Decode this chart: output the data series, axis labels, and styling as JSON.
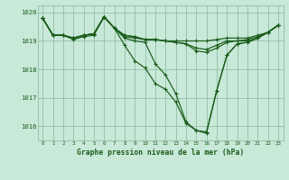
{
  "title": "Graphe pression niveau de la mer (hPa)",
  "bg_color": "#c8e8d8",
  "grid_color": "#90c0a8",
  "line_color": "#1a5c1a",
  "xlim_min": -0.5,
  "xlim_max": 23.5,
  "ylim_min": 1015.5,
  "ylim_max": 1020.25,
  "yticks": [
    1016,
    1017,
    1018,
    1019,
    1020
  ],
  "xtick_labels": [
    "0",
    "1",
    "2",
    "3",
    "4",
    "5",
    "6",
    "7",
    "8",
    "9",
    "10",
    "11",
    "12",
    "13",
    "14",
    "15",
    "16",
    "17",
    "18",
    "19",
    "20",
    "21",
    "22",
    "23"
  ],
  "series": [
    [
      1019.8,
      1019.2,
      1019.2,
      1019.1,
      1019.2,
      1019.25,
      1019.85,
      1019.45,
      1019.2,
      1019.15,
      1019.05,
      1019.05,
      1019.0,
      1018.95,
      1018.9,
      1018.75,
      1018.7,
      1018.85,
      1019.0,
      1019.0,
      1019.05,
      1019.15,
      1019.3,
      1019.55
    ],
    [
      1019.8,
      1019.2,
      1019.2,
      1019.1,
      1019.2,
      1019.25,
      1019.85,
      1019.45,
      1019.2,
      1019.15,
      1019.05,
      1019.05,
      1019.0,
      1019.0,
      1019.0,
      1019.0,
      1019.0,
      1019.05,
      1019.1,
      1019.1,
      1019.1,
      1019.2,
      1019.3,
      1019.55
    ],
    [
      1019.8,
      1019.2,
      1019.2,
      1019.1,
      1019.2,
      1019.25,
      1019.85,
      1019.45,
      1019.15,
      1019.1,
      1019.05,
      1019.05,
      1019.0,
      1018.95,
      1018.9,
      1018.65,
      1018.6,
      1018.75,
      1018.95,
      1019.0,
      1019.0,
      1019.1,
      1019.3,
      1019.55
    ],
    [
      1019.8,
      1019.2,
      1019.2,
      1019.1,
      1019.2,
      1019.25,
      1019.85,
      1019.45,
      1018.85,
      1018.3,
      1018.05,
      1017.5,
      1017.3,
      1016.85,
      1016.1,
      1015.85,
      1015.8,
      1017.25,
      1018.5,
      1018.9,
      1018.95,
      1019.1,
      1019.3,
      1019.55
    ],
    [
      1019.8,
      1019.2,
      1019.2,
      1019.05,
      1019.15,
      1019.2,
      1019.85,
      1019.45,
      1019.1,
      1019.0,
      1018.95,
      1018.2,
      1017.8,
      1017.15,
      1016.15,
      1015.85,
      1015.75,
      1017.25,
      1018.5,
      1018.9,
      1018.95,
      1019.1,
      1019.3,
      1019.55
    ]
  ],
  "label_fontsize": 4.2,
  "ytick_fontsize": 5.2,
  "title_fontsize": 5.8,
  "marker_size": 2.5,
  "linewidth": 0.85
}
